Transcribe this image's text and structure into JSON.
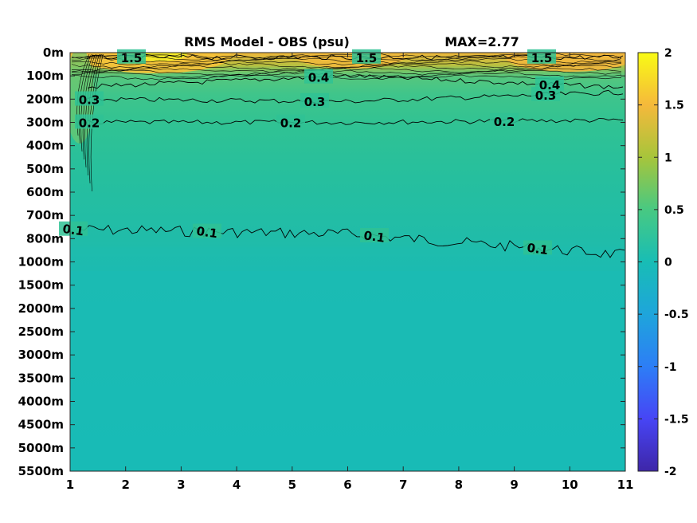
{
  "chart_data": {
    "type": "heatmap",
    "title": "RMS Model - OBS (psu)",
    "annotation": "MAX=2.77",
    "x": {
      "ticks": [
        1,
        2,
        3,
        4,
        5,
        6,
        7,
        8,
        9,
        10,
        11
      ],
      "labels": [
        "1",
        "2",
        "3",
        "4",
        "5",
        "6",
        "7",
        "8",
        "9",
        "10",
        "11"
      ],
      "range": [
        1,
        11
      ]
    },
    "y": {
      "labels": [
        "0m",
        "100m",
        "200m",
        "300m",
        "400m",
        "500m",
        "600m",
        "700m",
        "800m",
        "1000m",
        "1500m",
        "2000m",
        "2500m",
        "3000m",
        "3500m",
        "4000m",
        "4500m",
        "5000m",
        "5500m"
      ],
      "reversed": true
    },
    "colorbar": {
      "range": [
        -2,
        2
      ],
      "ticks": [
        -2,
        -1.5,
        -1,
        -0.5,
        0,
        0.5,
        1,
        1.5,
        2
      ],
      "labels": [
        "-2",
        "-1.5",
        "-1",
        "-0.5",
        "0",
        "0.5",
        "1",
        "1.5",
        "2"
      ],
      "colormap": "parula",
      "colors": [
        "#3e26a8",
        "#4745f5",
        "#2d7ef6",
        "#1ea5db",
        "#18bdb5",
        "#48c982",
        "#a7c53b",
        "#f5b93b",
        "#f9fb15"
      ]
    },
    "contours": [
      {
        "level": 0.1,
        "labels": [
          "0.1",
          "0.1",
          "0.1",
          "0.1"
        ],
        "depth_index": [
          7.6,
          7.8,
          8.7,
          9.2
        ]
      },
      {
        "level": 0.2,
        "labels": [
          "0.2",
          "0.2",
          "0.2"
        ],
        "depth_index": [
          3.0,
          3.0,
          2.9
        ]
      },
      {
        "level": 0.3,
        "labels": [
          "0.3",
          "0.3",
          "0.3"
        ],
        "depth_index": [
          2.0,
          2.1,
          1.7
        ]
      },
      {
        "level": 0.4,
        "labels": [
          "0.4",
          "0.4"
        ],
        "depth_index": [
          1.5,
          1.0
        ]
      },
      {
        "level": 1.5,
        "labels": [
          "1.5",
          "1.5",
          "1.5"
        ],
        "depth_index": [
          0.2,
          0.2,
          0.2
        ]
      }
    ],
    "max_value": 2.77
  }
}
